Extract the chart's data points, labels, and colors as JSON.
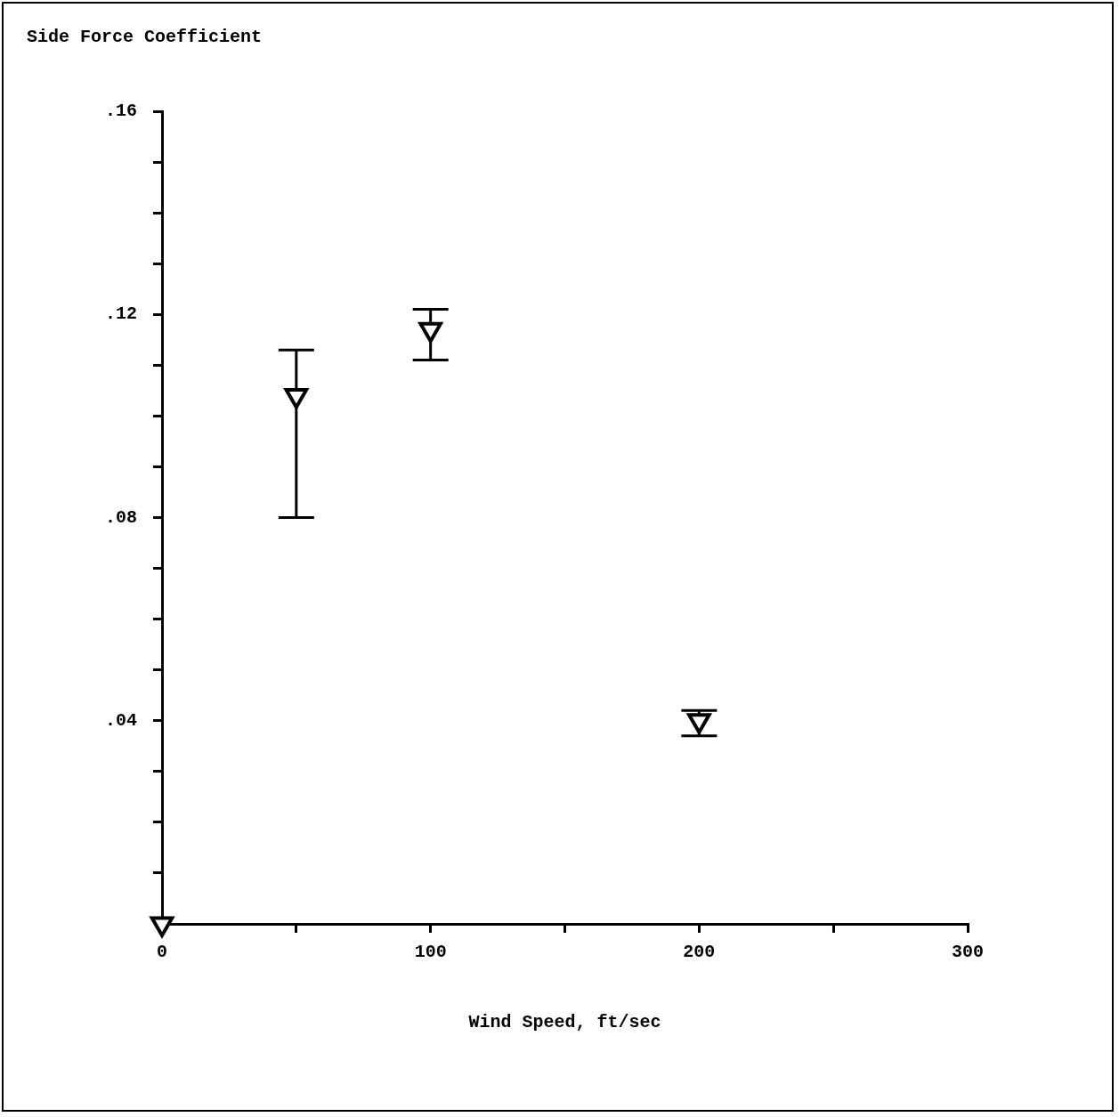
{
  "chart_data": {
    "type": "scatter",
    "xlabel": "Wind Speed, ft/sec",
    "ylabel": "Side Force Coefficient",
    "xlim": [
      0,
      300
    ],
    "ylim": [
      0,
      0.16
    ],
    "xticks": [
      0,
      {
        "value": 50,
        "label": null
      },
      100,
      {
        "value": 150,
        "label": null
      },
      200,
      {
        "value": 250,
        "label": null
      },
      300
    ],
    "yticks": [
      {
        "value": 0.01,
        "label": null
      },
      {
        "value": 0.02,
        "label": null
      },
      {
        "value": 0.03,
        "label": null
      },
      {
        "value": 0.04,
        "label": ".04"
      },
      {
        "value": 0.05,
        "label": null
      },
      {
        "value": 0.06,
        "label": null
      },
      {
        "value": 0.07,
        "label": null
      },
      {
        "value": 0.08,
        "label": ".08"
      },
      {
        "value": 0.09,
        "label": null
      },
      {
        "value": 0.1,
        "label": null
      },
      {
        "value": 0.11,
        "label": null
      },
      {
        "value": 0.12,
        "label": ".12"
      },
      {
        "value": 0.13,
        "label": null
      },
      {
        "value": 0.14,
        "label": null
      },
      {
        "value": 0.15,
        "label": null
      },
      {
        "value": 0.16,
        "label": ".16"
      }
    ],
    "grid": false,
    "legend": false,
    "series": [
      {
        "color": "#000000",
        "marker": "triangle",
        "x": [
          0,
          50,
          100,
          200
        ],
        "values": [
          0,
          0.104,
          0.117,
          0.04
        ],
        "errors": [
          null,
          [
            0.08,
            0.113
          ],
          [
            0.111,
            0.121
          ],
          [
            0.037,
            0.042
          ]
        ]
      }
    ]
  }
}
